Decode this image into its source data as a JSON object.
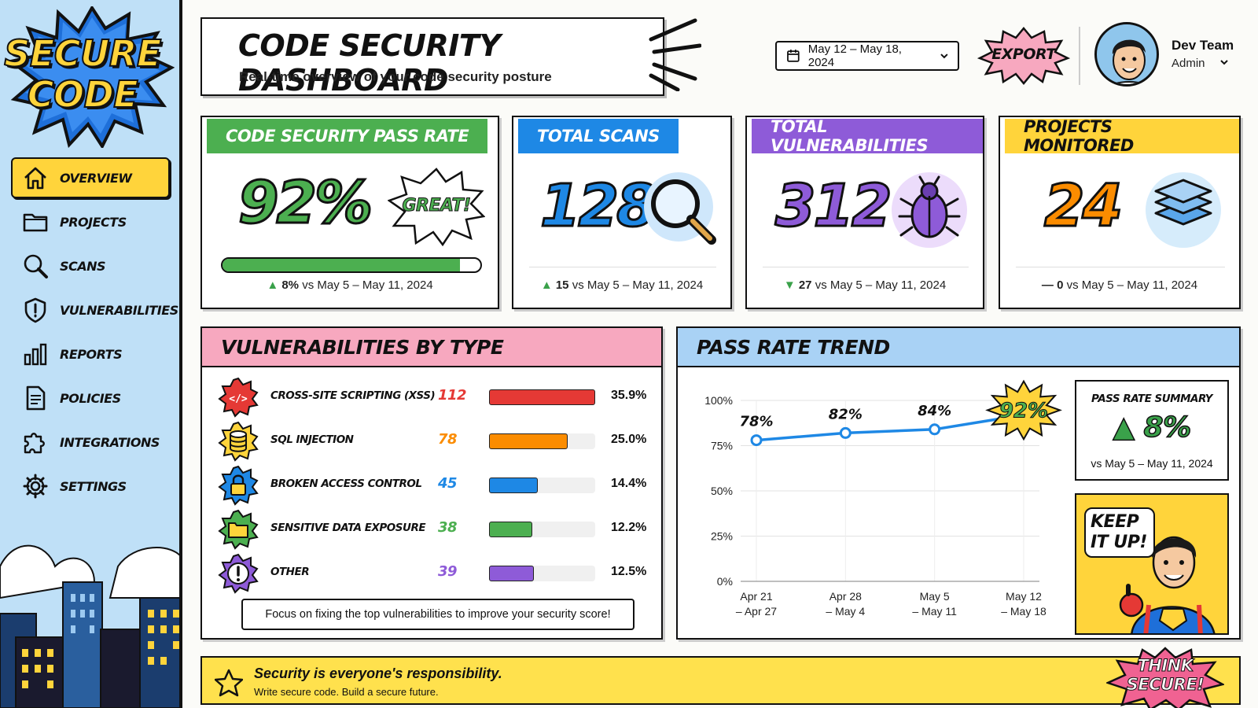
{
  "app": {
    "logo_line1": "SECURE",
    "logo_line2": "CODE"
  },
  "sidebar": {
    "items": [
      {
        "label": "OVERVIEW",
        "icon": "home-icon",
        "active": true
      },
      {
        "label": "PROJECTS",
        "icon": "folder-icon"
      },
      {
        "label": "SCANS",
        "icon": "search-icon"
      },
      {
        "label": "VULNERABILITIES",
        "icon": "shield-icon"
      },
      {
        "label": "REPORTS",
        "icon": "bar-chart-icon"
      },
      {
        "label": "POLICIES",
        "icon": "document-icon"
      },
      {
        "label": "INTEGRATIONS",
        "icon": "puzzle-icon"
      },
      {
        "label": "SETTINGS",
        "icon": "gear-icon"
      }
    ]
  },
  "header": {
    "title": "CODE SECURITY DASHBOARD",
    "subtitle": "Real-time overview of your code security posture",
    "date_range": "May 12 – May 18, 2024",
    "export_label": "EXPORT",
    "user_name": "Dev Team",
    "user_role": "Admin"
  },
  "stats": {
    "pass_rate": {
      "label": "CODE SECURITY PASS RATE",
      "value": "92%",
      "badge": "GREAT!",
      "progress": 0.92,
      "delta": "8%",
      "compare": "vs May 5 – May 11, 2024",
      "color": "#4caf50"
    },
    "total_scans": {
      "label": "TOTAL SCANS",
      "value": "128",
      "delta": "15",
      "compare": "vs May 5 – May 11, 2024",
      "color": "#1e88e5"
    },
    "total_vulns": {
      "label": "TOTAL VULNERABILITIES",
      "value": "312",
      "delta": "27",
      "compare": "vs May 5 – May 11, 2024",
      "color": "#8e5bd8"
    },
    "projects": {
      "label": "PROJECTS MONITORED",
      "value": "24",
      "delta": "0",
      "compare": "vs May 5 – May 11, 2024",
      "color": "#ffd43b"
    }
  },
  "vulnerabilities": {
    "title": "VULNERABILITIES BY TYPE",
    "rows": [
      {
        "name": "CROSS-SITE SCRIPTING (XSS)",
        "count": "112",
        "pct": "35.9%",
        "fill": 1.0,
        "color": "#e53935",
        "icon": "code-icon"
      },
      {
        "name": "SQL INJECTION",
        "count": "78",
        "pct": "25.0%",
        "fill": 0.74,
        "color": "#fb8c00",
        "icon": "database-icon"
      },
      {
        "name": "BROKEN ACCESS CONTROL",
        "count": "45",
        "pct": "14.4%",
        "fill": 0.46,
        "color": "#1e88e5",
        "icon": "lock-icon"
      },
      {
        "name": "SENSITIVE DATA EXPOSURE",
        "count": "38",
        "pct": "12.2%",
        "fill": 0.41,
        "color": "#4caf50",
        "icon": "folder-icon"
      },
      {
        "name": "OTHER",
        "count": "39",
        "pct": "12.5%",
        "fill": 0.42,
        "color": "#8e5bd8",
        "icon": "exclamation-icon"
      }
    ],
    "tip": "Focus on fixing the top vulnerabilities to improve your security score!"
  },
  "trend": {
    "title": "PASS RATE TREND",
    "summary_title": "PASS RATE SUMMARY",
    "summary_value": "8%",
    "summary_sub": "vs May 5 – May 11, 2024",
    "hero_text": "KEEP IT UP!"
  },
  "chart_data": {
    "type": "line",
    "x": [
      "Apr 21 – Apr 27",
      "Apr 28 – May 4",
      "May 5 – May 11",
      "May 12 – May 18"
    ],
    "series": [
      {
        "values": [
          78,
          82,
          84,
          92
        ]
      }
    ],
    "data_labels": [
      "78%",
      "82%",
      "84%",
      "92%"
    ],
    "yticks": [
      "0%",
      "25%",
      "50%",
      "75%",
      "100%"
    ],
    "ylim": [
      0,
      100
    ],
    "grid": true,
    "color": "#1e88e5"
  },
  "footer": {
    "main": "Security is everyone's responsibility.",
    "sub": "Write secure code. Build a secure future.",
    "badge": "THINK SECURE!"
  }
}
